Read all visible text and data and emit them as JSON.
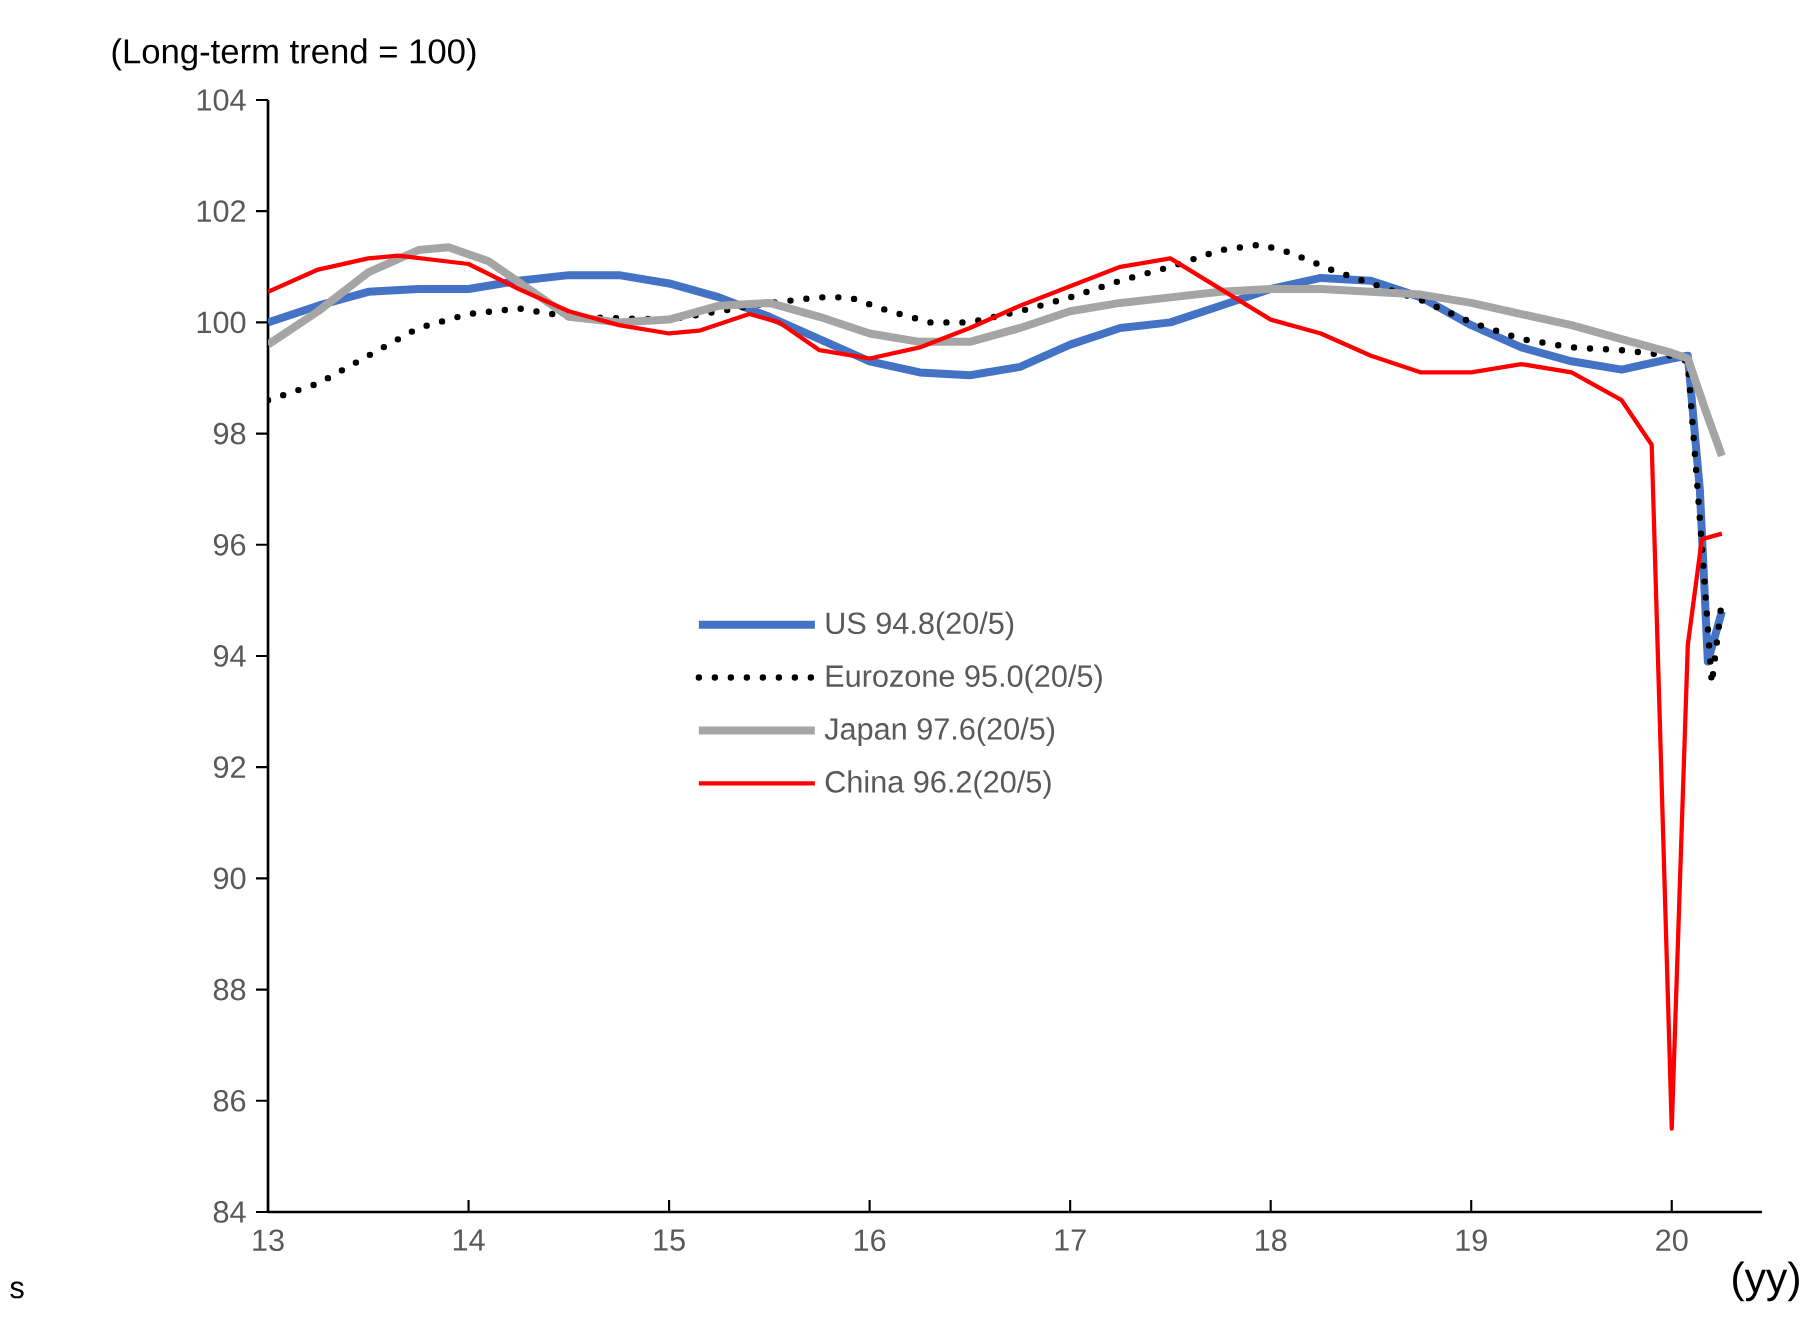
{
  "chart_data": {
    "type": "line",
    "ylabel": "(Long-term  trend = 100)",
    "xlabel": "(yy)",
    "annotations": [
      "s"
    ],
    "xlim": [
      13,
      20.45
    ],
    "ylim": [
      84,
      104
    ],
    "xticks": [
      13,
      14,
      15,
      16,
      17,
      18,
      19,
      20
    ],
    "yticks": [
      84,
      86,
      88,
      90,
      92,
      94,
      96,
      98,
      100,
      102,
      104
    ],
    "legend": "center",
    "series": [
      {
        "name": "US 94.8(20/5)",
        "color": "#4472c4",
        "line_style": "solid",
        "x": [
          13,
          13.25,
          13.5,
          13.75,
          14,
          14.25,
          14.5,
          14.75,
          15,
          15.25,
          15.5,
          15.75,
          16,
          16.25,
          16.5,
          16.75,
          17,
          17.25,
          17.5,
          17.75,
          18,
          18.25,
          18.5,
          18.75,
          19,
          19.25,
          19.5,
          19.75,
          20,
          20.08,
          20.14,
          20.18,
          20.25
        ],
        "values": [
          100.0,
          100.3,
          100.55,
          100.6,
          100.6,
          100.75,
          100.85,
          100.85,
          100.7,
          100.45,
          100.1,
          99.7,
          99.3,
          99.1,
          99.05,
          99.2,
          99.6,
          99.9,
          100.0,
          100.3,
          100.6,
          100.8,
          100.75,
          100.45,
          99.95,
          99.55,
          99.3,
          99.15,
          99.35,
          99.4,
          97.0,
          93.9,
          94.8
        ]
      },
      {
        "name": "Eurozone 95.0(20/5)",
        "color": "#000000",
        "line_style": "dotted",
        "x": [
          13,
          13.25,
          13.5,
          13.75,
          14,
          14.25,
          14.5,
          14.75,
          15,
          15.25,
          15.5,
          15.75,
          15.9,
          16.1,
          16.3,
          16.5,
          16.75,
          17,
          17.25,
          17.5,
          17.75,
          17.95,
          18.1,
          18.3,
          18.5,
          18.75,
          19,
          19.25,
          19.5,
          19.75,
          20,
          20.08,
          20.15,
          20.2,
          20.25
        ],
        "values": [
          98.6,
          98.9,
          99.4,
          99.9,
          100.15,
          100.25,
          100.1,
          null,
          100.05,
          100.2,
          100.35,
          100.45,
          100.45,
          100.2,
          100.0,
          100.0,
          100.2,
          100.45,
          100.75,
          101.0,
          101.3,
          101.4,
          101.25,
          100.95,
          100.7,
          100.4,
          100.0,
          99.7,
          99.55,
          99.5,
          99.4,
          99.3,
          96.0,
          93.5,
          95.0
        ]
      },
      {
        "name": "Japan 97.6(20/5)",
        "color": "#a5a5a5",
        "line_style": "solid",
        "x": [
          13,
          13.25,
          13.5,
          13.75,
          13.9,
          14.1,
          14.3,
          14.5,
          14.75,
          15,
          15.25,
          15.5,
          15.75,
          16,
          16.25,
          16.5,
          16.75,
          17,
          17.25,
          17.5,
          17.75,
          18,
          18.25,
          18.5,
          18.75,
          19,
          19.25,
          19.5,
          19.75,
          20,
          20.08,
          20.17,
          20.25
        ],
        "values": [
          99.6,
          100.2,
          100.9,
          101.3,
          101.35,
          101.1,
          100.6,
          100.1,
          100.0,
          100.05,
          100.3,
          100.35,
          100.1,
          99.8,
          99.65,
          99.65,
          99.9,
          100.2,
          100.35,
          100.45,
          100.55,
          100.6,
          100.6,
          100.55,
          100.5,
          100.35,
          100.15,
          99.95,
          99.7,
          99.45,
          99.35,
          98.4,
          97.6
        ]
      },
      {
        "name": "China 96.2(20/5)",
        "color": "#ff0000",
        "line_style": "solid",
        "x": [
          13,
          13.25,
          13.5,
          13.65,
          14,
          14.25,
          14.5,
          14.75,
          15,
          15.15,
          15.4,
          15.55,
          15.75,
          16,
          16.25,
          16.5,
          16.75,
          17,
          17.25,
          17.5,
          17.75,
          18,
          18.25,
          18.5,
          18.75,
          19,
          19.25,
          19.5,
          19.75,
          19.9,
          20.0,
          20.08,
          20.15,
          20.25
        ],
        "values": [
          100.55,
          100.95,
          101.15,
          101.2,
          101.05,
          100.6,
          100.2,
          99.95,
          99.8,
          99.85,
          100.15,
          100.0,
          99.5,
          99.35,
          99.55,
          99.9,
          100.3,
          100.65,
          101.0,
          101.15,
          100.6,
          100.05,
          99.8,
          99.4,
          99.1,
          99.1,
          99.25,
          99.1,
          98.6,
          97.8,
          85.5,
          94.2,
          96.1,
          96.2
        ]
      }
    ]
  }
}
